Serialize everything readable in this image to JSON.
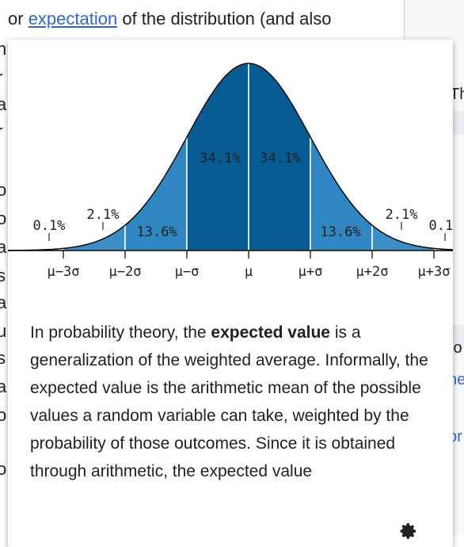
{
  "background": {
    "intro_before": "or ",
    "intro_link": "expectation",
    "intro_after": " of the distribution (and also",
    "left_fragments": [
      "h",
      "r",
      "a",
      "r",
      "o",
      "o",
      "a",
      "s",
      "a",
      "u",
      "s",
      "a",
      "o",
      "o"
    ],
    "right_fragments": [
      "Th",
      "io",
      "ne",
      "pr"
    ]
  },
  "popup": {
    "extract": {
      "p1": "In probability theory, the ",
      "bold": "expected value",
      "p2": " is a generalization of the weighted average. Informally, the expected value is the arithmetic mean of the possible values a random variable can take, weighted by the probability of those outcomes. Since it is obtained through arithmetic, the expected value"
    },
    "settings_icon": "gear-icon"
  },
  "chart_data": {
    "type": "area",
    "title": "",
    "distribution": "normal",
    "regions": [
      {
        "from": -4,
        "to": -3,
        "label": "0.1%",
        "color": "#ffffff"
      },
      {
        "from": -3,
        "to": -2,
        "label": "2.1%",
        "color": "#3b8fc6"
      },
      {
        "from": -2,
        "to": -1,
        "label": "13.6%",
        "color": "#2f86c0"
      },
      {
        "from": -1,
        "to": 0,
        "label": "34.1%",
        "color": "#075b93"
      },
      {
        "from": 0,
        "to": 1,
        "label": "34.1%",
        "color": "#075b93"
      },
      {
        "from": 1,
        "to": 2,
        "label": "13.6%",
        "color": "#2f86c0"
      },
      {
        "from": 2,
        "to": 3,
        "label": "2.1%",
        "color": "#3b8fc6"
      },
      {
        "from": 3,
        "to": 4,
        "label": "0.1%",
        "color": "#ffffff"
      }
    ],
    "xticks": [
      {
        "x": -3,
        "label": "μ−3σ"
      },
      {
        "x": -2,
        "label": "μ−2σ"
      },
      {
        "x": -1,
        "label": "μ−σ"
      },
      {
        "x": 0,
        "label": "μ"
      },
      {
        "x": 1,
        "label": "μ+σ"
      },
      {
        "x": 2,
        "label": "μ+2σ"
      },
      {
        "x": 3,
        "label": "μ+3σ"
      }
    ],
    "xlim": [
      -4,
      4
    ]
  }
}
